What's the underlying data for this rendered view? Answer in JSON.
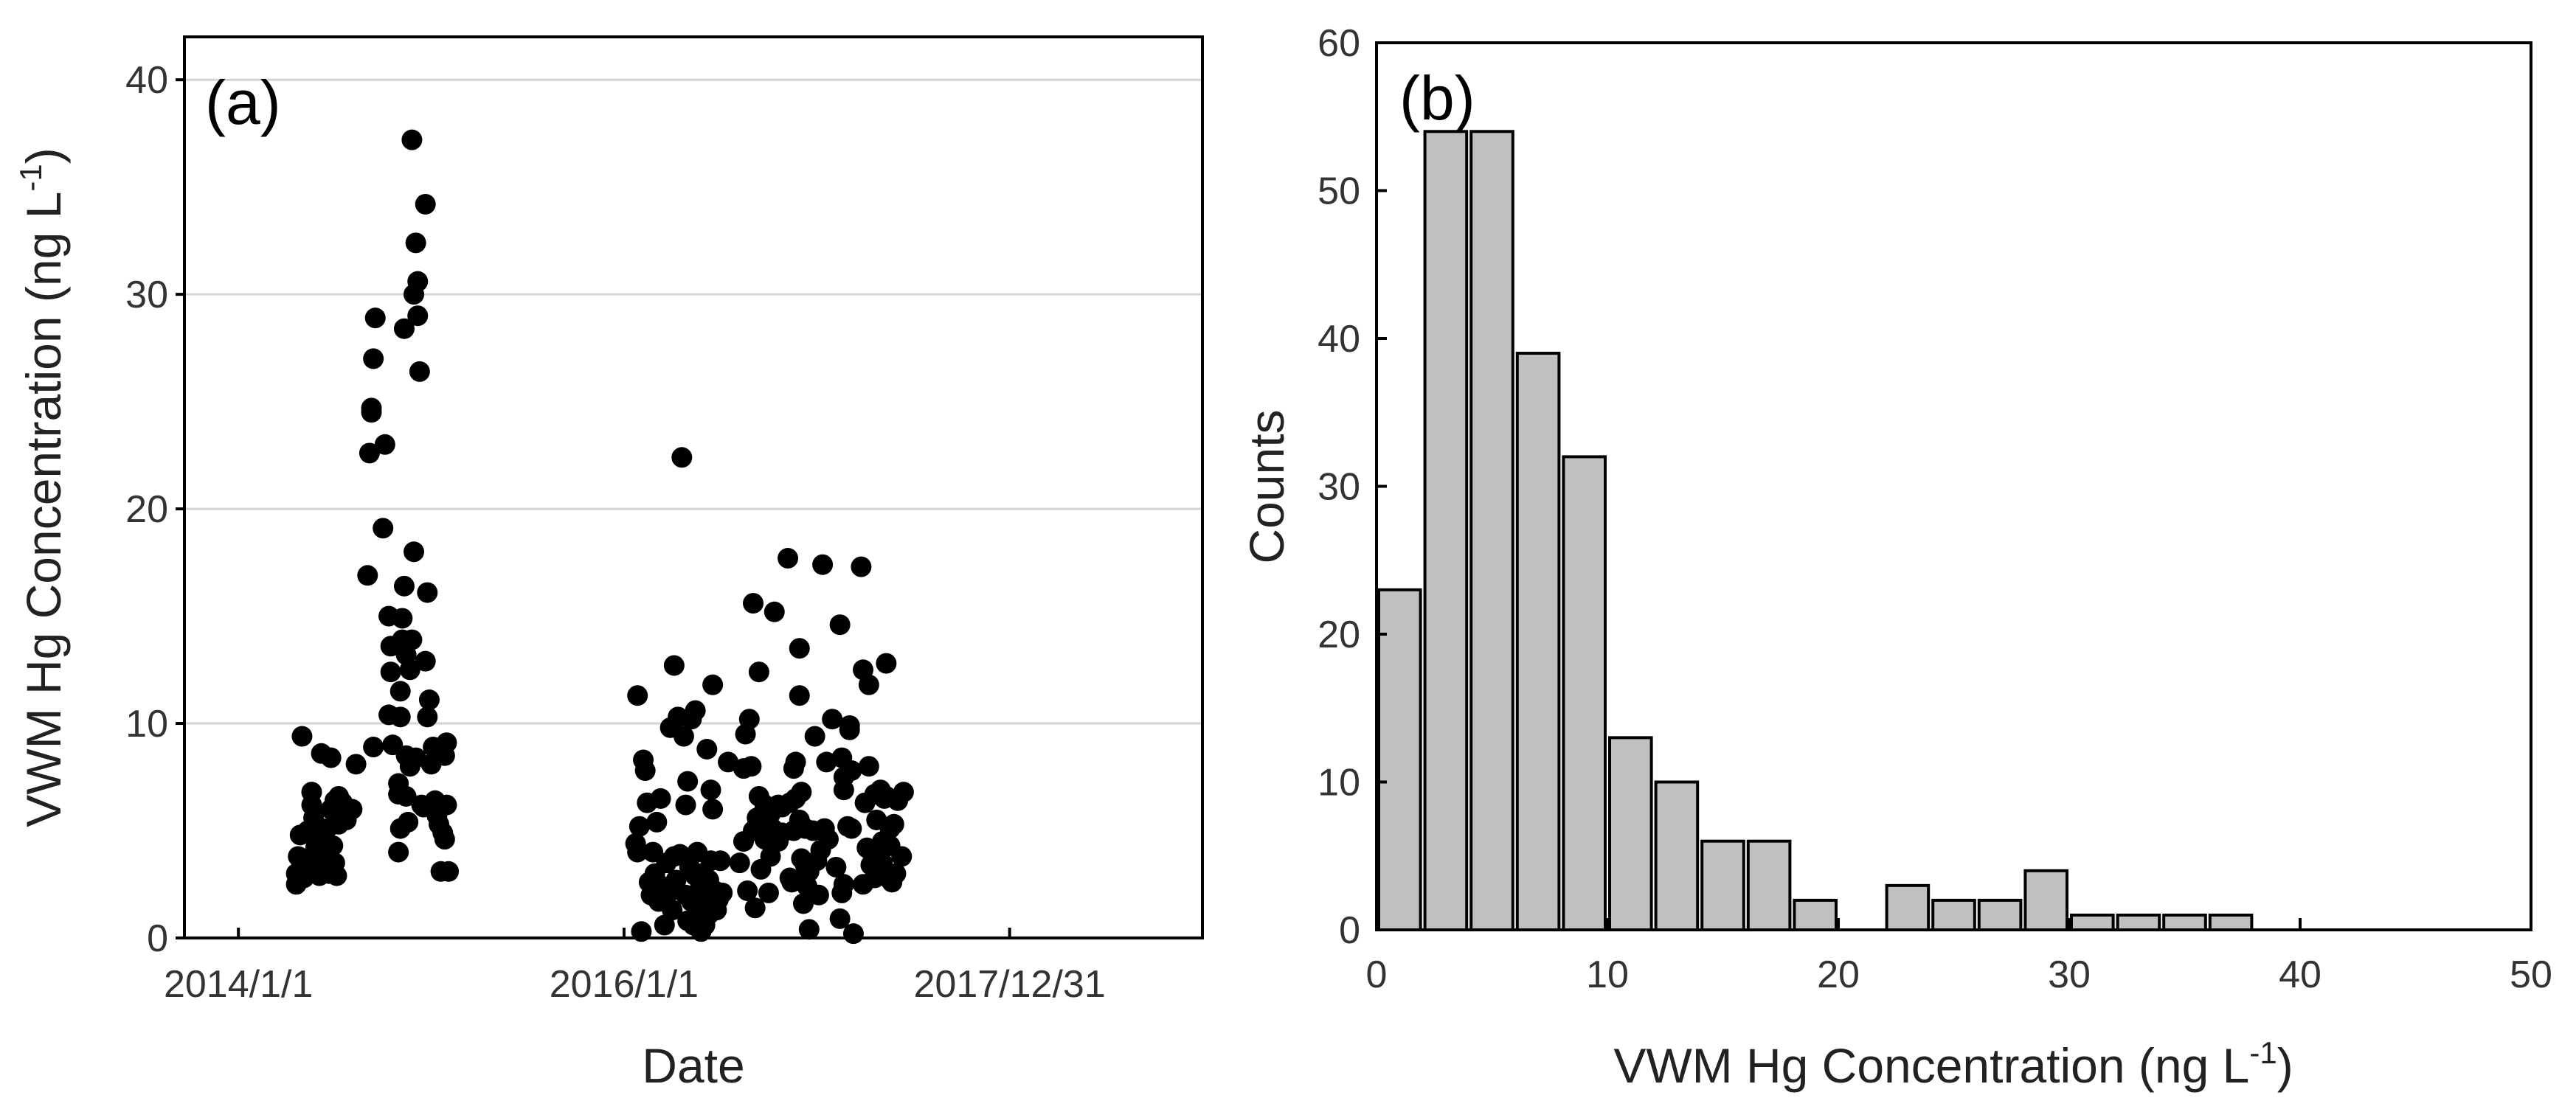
{
  "chart_data": [
    {
      "type": "scatter",
      "panel_label": "(a)",
      "xlabel": "Date",
      "ylabel_main": "VWM Hg Concentration (ng L",
      "ylabel_sup": "-1",
      "ylabel_close": ")",
      "ylim": [
        0,
        42
      ],
      "yticks": [
        0,
        10,
        20,
        30,
        40
      ],
      "xlim": [
        2013.72,
        2019.0
      ],
      "xticks": [
        {
          "value": 2014.0,
          "label": "2014/1/1"
        },
        {
          "value": 2016.0,
          "label": "2016/1/1"
        },
        {
          "value": 2018.0,
          "label": "2017/12/31"
        }
      ],
      "grid": "horizontal",
      "points": [
        [
          2014.3,
          2.5
        ],
        [
          2014.3,
          3.0
        ],
        [
          2014.31,
          3.8
        ],
        [
          2014.32,
          4.8
        ],
        [
          2014.33,
          9.4
        ],
        [
          2014.34,
          2.8
        ],
        [
          2014.35,
          3.5
        ],
        [
          2014.36,
          5.0
        ],
        [
          2014.38,
          6.2
        ],
        [
          2014.38,
          6.8
        ],
        [
          2014.39,
          5.6
        ],
        [
          2014.4,
          4.2
        ],
        [
          2014.41,
          3.4
        ],
        [
          2014.42,
          2.9
        ],
        [
          2014.43,
          8.6
        ],
        [
          2014.44,
          4.6
        ],
        [
          2014.45,
          3.8
        ],
        [
          2014.46,
          5.1
        ],
        [
          2014.47,
          3.0
        ],
        [
          2014.48,
          6.0
        ],
        [
          2014.48,
          8.4
        ],
        [
          2014.49,
          4.3
        ],
        [
          2014.5,
          3.5
        ],
        [
          2014.5,
          6.4
        ],
        [
          2014.51,
          2.9
        ],
        [
          2014.52,
          6.6
        ],
        [
          2014.52,
          5.3
        ],
        [
          2014.54,
          6.3
        ],
        [
          2014.56,
          5.5
        ],
        [
          2014.59,
          6.0
        ],
        [
          2014.61,
          8.1
        ],
        [
          2014.67,
          16.9
        ],
        [
          2014.68,
          22.6
        ],
        [
          2014.69,
          24.7
        ],
        [
          2014.69,
          24.5
        ],
        [
          2014.7,
          27.0
        ],
        [
          2014.7,
          8.9
        ],
        [
          2014.71,
          28.9
        ],
        [
          2014.76,
          23.0
        ],
        [
          2014.75,
          19.1
        ],
        [
          2014.78,
          10.4
        ],
        [
          2014.78,
          15.0
        ],
        [
          2014.79,
          13.6
        ],
        [
          2014.79,
          12.4
        ],
        [
          2014.8,
          9.0
        ],
        [
          2014.83,
          7.2
        ],
        [
          2014.83,
          6.7
        ],
        [
          2014.83,
          4.0
        ],
        [
          2014.84,
          5.1
        ],
        [
          2014.84,
          10.3
        ],
        [
          2014.84,
          11.5
        ],
        [
          2014.85,
          13.9
        ],
        [
          2014.85,
          14.9
        ],
        [
          2014.86,
          28.4
        ],
        [
          2014.86,
          16.4
        ],
        [
          2014.87,
          8.5
        ],
        [
          2014.87,
          6.6
        ],
        [
          2014.87,
          13.2
        ],
        [
          2014.88,
          5.4
        ],
        [
          2014.89,
          12.5
        ],
        [
          2014.89,
          8.0
        ],
        [
          2014.9,
          37.2
        ],
        [
          2014.9,
          13.9
        ],
        [
          2014.91,
          30.0
        ],
        [
          2014.91,
          18.0
        ],
        [
          2014.92,
          8.4
        ],
        [
          2014.92,
          32.4
        ],
        [
          2014.93,
          30.6
        ],
        [
          2014.93,
          29.0
        ],
        [
          2014.94,
          26.4
        ],
        [
          2014.95,
          6.2
        ],
        [
          2014.96,
          6.1
        ],
        [
          2014.97,
          34.2
        ],
        [
          2014.97,
          12.9
        ],
        [
          2014.98,
          16.1
        ],
        [
          2014.98,
          10.3
        ],
        [
          2014.99,
          11.1
        ],
        [
          2015.0,
          8.1
        ],
        [
          2015.01,
          8.9
        ],
        [
          2015.02,
          6.4
        ],
        [
          2015.02,
          6.1
        ],
        [
          2015.03,
          5.7
        ],
        [
          2015.04,
          5.3
        ],
        [
          2015.05,
          3.1
        ],
        [
          2015.06,
          4.9
        ],
        [
          2015.07,
          4.6
        ],
        [
          2015.07,
          8.5
        ],
        [
          2015.08,
          9.1
        ],
        [
          2015.08,
          6.2
        ],
        [
          2015.09,
          3.1
        ],
        [
          2016.06,
          4.4
        ],
        [
          2016.07,
          11.3
        ],
        [
          2016.07,
          4.0
        ],
        [
          2016.08,
          5.2
        ],
        [
          2016.09,
          0.3
        ],
        [
          2016.1,
          8.3
        ],
        [
          2016.11,
          7.8
        ],
        [
          2016.12,
          6.3
        ],
        [
          2016.13,
          2.6
        ],
        [
          2016.14,
          2.0
        ],
        [
          2016.15,
          4.0
        ],
        [
          2016.16,
          3.0
        ],
        [
          2016.17,
          5.4
        ],
        [
          2016.18,
          2.5
        ],
        [
          2016.18,
          1.7
        ],
        [
          2016.19,
          6.5
        ],
        [
          2016.21,
          0.6
        ],
        [
          2016.22,
          3.5
        ],
        [
          2016.23,
          2.1
        ],
        [
          2016.24,
          9.8
        ],
        [
          2016.25,
          1.3
        ],
        [
          2016.26,
          12.7
        ],
        [
          2016.26,
          3.8
        ],
        [
          2016.27,
          2.7
        ],
        [
          2016.28,
          10.3
        ],
        [
          2016.29,
          3.9
        ],
        [
          2016.3,
          22.4
        ],
        [
          2016.31,
          9.4
        ],
        [
          2016.32,
          6.2
        ],
        [
          2016.32,
          2.0
        ],
        [
          2016.33,
          0.8
        ],
        [
          2016.33,
          7.3
        ],
        [
          2016.34,
          3.3
        ],
        [
          2016.35,
          10.2
        ],
        [
          2016.35,
          1.7
        ],
        [
          2016.36,
          0.6
        ],
        [
          2016.37,
          10.6
        ],
        [
          2016.37,
          2.9
        ],
        [
          2016.38,
          4.0
        ],
        [
          2016.38,
          2.1
        ],
        [
          2016.39,
          1.0
        ],
        [
          2016.4,
          3.0
        ],
        [
          2016.4,
          0.3
        ],
        [
          2016.41,
          1.8
        ],
        [
          2016.42,
          0.6
        ],
        [
          2016.43,
          8.8
        ],
        [
          2016.44,
          2.7
        ],
        [
          2016.44,
          1.1
        ],
        [
          2016.45,
          3.6
        ],
        [
          2016.45,
          6.9
        ],
        [
          2016.46,
          6.0
        ],
        [
          2016.46,
          11.8
        ],
        [
          2016.47,
          2.2
        ],
        [
          2016.48,
          1.3
        ],
        [
          2016.49,
          1.8
        ],
        [
          2016.5,
          3.6
        ],
        [
          2016.51,
          2.1
        ],
        [
          2016.54,
          8.2
        ],
        [
          2016.6,
          3.5
        ],
        [
          2016.62,
          7.9
        ],
        [
          2016.62,
          4.5
        ],
        [
          2016.63,
          9.5
        ],
        [
          2016.64,
          2.2
        ],
        [
          2016.65,
          10.2
        ],
        [
          2016.66,
          8.0
        ],
        [
          2016.67,
          15.6
        ],
        [
          2016.67,
          5.0
        ],
        [
          2016.68,
          1.4
        ],
        [
          2016.69,
          5.6
        ],
        [
          2016.7,
          6.6
        ],
        [
          2016.7,
          12.4
        ],
        [
          2016.71,
          3.2
        ],
        [
          2016.72,
          5.8
        ],
        [
          2016.73,
          4.6
        ],
        [
          2016.73,
          6.2
        ],
        [
          2016.74,
          5.3
        ],
        [
          2016.75,
          2.1
        ],
        [
          2016.76,
          3.8
        ],
        [
          2016.76,
          5.8
        ],
        [
          2016.77,
          5.1
        ],
        [
          2016.78,
          15.2
        ],
        [
          2016.8,
          6.2
        ],
        [
          2016.8,
          4.5
        ],
        [
          2016.82,
          6.1
        ],
        [
          2016.82,
          4.9
        ],
        [
          2016.85,
          17.7
        ],
        [
          2016.86,
          2.8
        ],
        [
          2016.86,
          6.3
        ],
        [
          2016.87,
          2.6
        ],
        [
          2016.88,
          5.0
        ],
        [
          2016.88,
          7.9
        ],
        [
          2016.89,
          8.2
        ],
        [
          2016.89,
          6.5
        ],
        [
          2016.91,
          5.5
        ],
        [
          2016.91,
          13.5
        ],
        [
          2016.91,
          11.3
        ],
        [
          2016.92,
          3.7
        ],
        [
          2016.92,
          6.8
        ],
        [
          2016.93,
          1.6
        ],
        [
          2016.94,
          3.4
        ],
        [
          2016.94,
          5.1
        ],
        [
          2016.95,
          2.4
        ],
        [
          2016.96,
          3.1
        ],
        [
          2016.96,
          0.4
        ],
        [
          2016.98,
          5.0
        ],
        [
          2016.99,
          9.4
        ],
        [
          2017.0,
          3.6
        ],
        [
          2017.01,
          2.0
        ],
        [
          2017.02,
          4.1
        ],
        [
          2017.03,
          17.4
        ],
        [
          2017.04,
          5.1
        ],
        [
          2017.05,
          8.2
        ],
        [
          2017.06,
          4.6
        ],
        [
          2017.08,
          10.2
        ],
        [
          2017.1,
          3.3
        ],
        [
          2017.12,
          0.9
        ],
        [
          2017.12,
          14.6
        ],
        [
          2017.13,
          2.1
        ],
        [
          2017.13,
          8.4
        ],
        [
          2017.14,
          2.5
        ],
        [
          2017.14,
          6.9
        ],
        [
          2017.14,
          7.5
        ],
        [
          2017.16,
          5.2
        ],
        [
          2017.17,
          9.7
        ],
        [
          2017.17,
          9.9
        ],
        [
          2017.18,
          7.8
        ],
        [
          2017.18,
          5.1
        ],
        [
          2017.19,
          0.2
        ],
        [
          2017.23,
          17.3
        ],
        [
          2017.24,
          12.5
        ],
        [
          2017.24,
          2.5
        ],
        [
          2017.25,
          6.3
        ],
        [
          2017.26,
          4.2
        ],
        [
          2017.27,
          8.0
        ],
        [
          2017.27,
          11.8
        ],
        [
          2017.28,
          3.4
        ],
        [
          2017.29,
          3.9
        ],
        [
          2017.3,
          6.7
        ],
        [
          2017.3,
          2.8
        ],
        [
          2017.31,
          5.5
        ],
        [
          2017.32,
          3.2
        ],
        [
          2017.33,
          6.9
        ],
        [
          2017.34,
          4.5
        ],
        [
          2017.34,
          3.5
        ],
        [
          2017.35,
          6.5
        ],
        [
          2017.36,
          12.8
        ],
        [
          2017.36,
          6.6
        ],
        [
          2017.37,
          2.8
        ],
        [
          2017.38,
          4.3
        ],
        [
          2017.38,
          5.1
        ],
        [
          2017.39,
          2.6
        ],
        [
          2017.4,
          5.3
        ],
        [
          2017.41,
          3.0
        ],
        [
          2017.42,
          6.4
        ],
        [
          2017.44,
          3.8
        ],
        [
          2017.45,
          6.8
        ]
      ]
    },
    {
      "type": "bar",
      "panel_label": "(b)",
      "xlabel_main": "VWM Hg Concentration (ng L",
      "xlabel_sup": "-1",
      "xlabel_close": ")",
      "ylabel": "Counts",
      "xlim": [
        0,
        50
      ],
      "ylim": [
        0,
        60
      ],
      "xticks": [
        0,
        10,
        20,
        30,
        40,
        50
      ],
      "yticks": [
        0,
        10,
        20,
        30,
        40,
        50,
        60
      ],
      "bin_width": 2,
      "bin_centers": [
        1,
        3,
        5,
        7,
        9,
        11,
        13,
        15,
        17,
        19,
        21,
        23,
        25,
        27,
        29,
        31,
        33,
        35,
        37
      ],
      "values": [
        23,
        54,
        54,
        39,
        32,
        13,
        10,
        6,
        6,
        2,
        0,
        3,
        2,
        2,
        4,
        1,
        1,
        1,
        1
      ],
      "bar_color": "#c0c0c0",
      "grid": "none"
    }
  ]
}
